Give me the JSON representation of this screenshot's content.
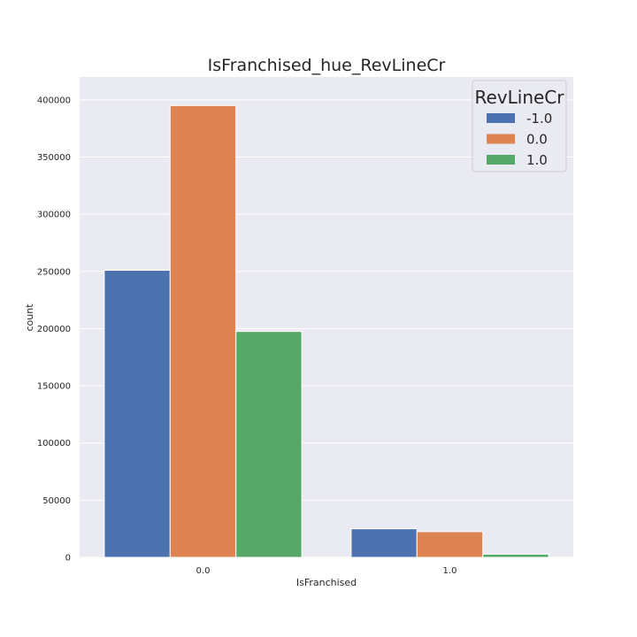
{
  "chart_data": {
    "type": "bar",
    "title": "IsFranchised_hue_RevLineCr",
    "xlabel": "IsFranchised",
    "ylabel": "count",
    "categories": [
      "0.0",
      "1.0"
    ],
    "series": [
      {
        "name": "-1.0",
        "color": "#4c72b0",
        "values": [
          251000,
          25000
        ]
      },
      {
        "name": "0.0",
        "color": "#dd8452",
        "values": [
          395000,
          22500
        ]
      },
      {
        "name": "1.0",
        "color": "#55a868",
        "values": [
          197500,
          2800
        ]
      }
    ],
    "ylim": [
      0,
      420000
    ],
    "yticks": [
      0,
      50000,
      100000,
      150000,
      200000,
      250000,
      300000,
      350000,
      400000
    ],
    "grid": true,
    "legend": {
      "title": "RevLineCr",
      "placement": "top-right"
    }
  }
}
